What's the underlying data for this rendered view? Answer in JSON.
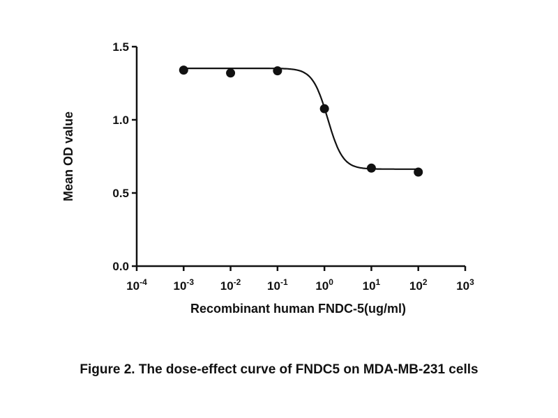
{
  "chart_data": {
    "type": "scatter",
    "title": "",
    "xlabel": "Recombinant human FNDC-5(ug/ml)",
    "ylabel": "Mean OD value",
    "xscale": "log",
    "xlim": [
      0.0001,
      1000
    ],
    "ylim": [
      0,
      1.5
    ],
    "xticks": [
      {
        "base": "10",
        "exp": "-4",
        "value": 0.0001
      },
      {
        "base": "10",
        "exp": "-3",
        "value": 0.001
      },
      {
        "base": "10",
        "exp": "-2",
        "value": 0.01
      },
      {
        "base": "10",
        "exp": "-1",
        "value": 0.1
      },
      {
        "base": "10",
        "exp": "0",
        "value": 1
      },
      {
        "base": "10",
        "exp": "1",
        "value": 10
      },
      {
        "base": "10",
        "exp": "2",
        "value": 100
      },
      {
        "base": "10",
        "exp": "3",
        "value": 1000
      }
    ],
    "yticks": [
      "0.0",
      "0.5",
      "1.0",
      "1.5"
    ],
    "grid": false,
    "series": [
      {
        "name": "Mean OD",
        "x": [
          0.001,
          0.01,
          0.1,
          1,
          10,
          100
        ],
        "y": [
          1.34,
          1.32,
          1.335,
          1.076,
          0.67,
          0.643
        ]
      }
    ],
    "fit_curve": {
      "model": "sigmoidal dose-response",
      "top": 1.352,
      "bottom": 0.663,
      "logEC50": 0.07,
      "hill_slope": -2.7
    }
  },
  "caption": "Figure 2. The dose-effect curve of FNDC5 on MDA-MB-231 cells",
  "colors": {
    "ink": "#111111",
    "background": "#ffffff"
  }
}
